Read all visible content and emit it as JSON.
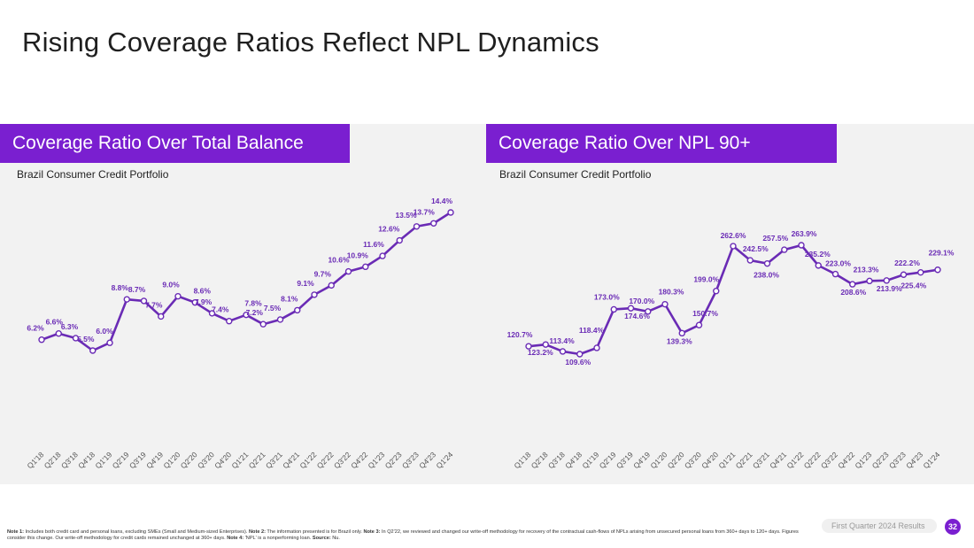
{
  "title": "Rising Coverage Ratios Reflect NPL Dynamics",
  "colors": {
    "accent": "#7a1fd0",
    "line": "#6a2bb5",
    "label": "#6a2bb5",
    "panel_bg": "#f2f2f2"
  },
  "chart_data": [
    {
      "type": "line",
      "title": "Coverage Ratio Over Total Balance",
      "subtitle": "Brazil Consumer Credit Portfolio",
      "categories": [
        "Q1'18",
        "Q2'18",
        "Q3'18",
        "Q4'18",
        "Q1'19",
        "Q2'19",
        "Q3'19",
        "Q4'19",
        "Q1'20",
        "Q2'20",
        "Q3'20",
        "Q4'20",
        "Q1'21",
        "Q2'21",
        "Q3'21",
        "Q4'21",
        "Q1'22",
        "Q2'22",
        "Q3'22",
        "Q4'22",
        "Q1'23",
        "Q2'23",
        "Q3'23",
        "Q4'23",
        "Q1'24"
      ],
      "values": [
        6.2,
        6.6,
        6.3,
        5.5,
        6.0,
        8.8,
        8.7,
        7.7,
        9.0,
        8.6,
        7.9,
        7.4,
        7.8,
        7.2,
        7.5,
        8.1,
        9.1,
        9.7,
        10.6,
        10.9,
        11.6,
        12.6,
        13.5,
        13.7,
        14.4
      ],
      "labels": [
        "6.2%",
        "6.6%",
        "6.3%",
        "5.5%",
        "6.0%",
        "8.8%",
        "8.7%",
        "7.7%",
        "9.0%",
        "8.6%",
        "7.9%",
        "7.4%",
        "7.8%",
        "7.2%",
        "7.5%",
        "8.1%",
        "9.1%",
        "9.7%",
        "10.6%",
        "10.9%",
        "11.6%",
        "12.6%",
        "13.5%",
        "13.7%",
        "14.4%"
      ],
      "xlabel": "",
      "ylabel": "",
      "ylim": [
        0,
        16
      ],
      "grid": false,
      "legend": "none"
    },
    {
      "type": "line",
      "title": "Coverage Ratio Over NPL 90+",
      "subtitle": "Brazil Consumer Credit Portfolio",
      "categories": [
        "Q1'18",
        "Q2'18",
        "Q3'18",
        "Q4'18",
        "Q1'19",
        "Q2'19",
        "Q3'19",
        "Q4'19",
        "Q1'20",
        "Q2'20",
        "Q3'20",
        "Q4'20",
        "Q1'21",
        "Q2'21",
        "Q3'21",
        "Q4'21",
        "Q1'22",
        "Q2'22",
        "Q3'22",
        "Q4'22",
        "Q1'23",
        "Q2'23",
        "Q3'23",
        "Q4'23",
        "Q1'24"
      ],
      "values": [
        120.7,
        123.2,
        113.4,
        109.6,
        118.4,
        173.0,
        174.6,
        170.0,
        180.3,
        139.3,
        150.7,
        199.0,
        262.6,
        242.5,
        238.0,
        257.5,
        263.9,
        235.2,
        223.0,
        208.6,
        213.3,
        213.9,
        222.2,
        225.4,
        229.1
      ],
      "labels": [
        "120.7%",
        "123.2%",
        "113.4%",
        "109.6%",
        "118.4%",
        "173.0%",
        "174.6%",
        "170.0%",
        "180.3%",
        "139.3%",
        "150.7%",
        "199.0%",
        "262.6%",
        "242.5%",
        "238.0%",
        "257.5%",
        "263.9%",
        "235.2%",
        "223.0%",
        "208.6%",
        "213.3%",
        "213.9%",
        "222.2%",
        "225.4%",
        "229.1%"
      ],
      "xlabel": "",
      "ylabel": "",
      "ylim": [
        0,
        300
      ],
      "grid": false,
      "legend": "none"
    }
  ],
  "footnote": {
    "n1_label": "Note 1:",
    "n1_text": " Includes both credit card and personal loans, excluding SMEs (Small and Medium-sized Enterprises). ",
    "n2_label": "Note 2:",
    "n2_text": " The information presented is for Brazil only. ",
    "n3_label": "Note 3:",
    "n3_text": " In Q2'22, we reviewed and changed our write-off methodology for recovery of the contractual cash-flows of NPLs arising from unsecured personal loans from 360+ days to 120+ days. Figures consider this change. Our write-off methodology for credit cards remained unchanged at 360+ days. ",
    "n4_label": "Note 4:",
    "n4_text": " 'NPL' is a nonperforming loan. ",
    "source_label": "Source:",
    "source_text": " Nu."
  },
  "footer": {
    "label": "First Quarter 2024 Results",
    "page": "32"
  }
}
